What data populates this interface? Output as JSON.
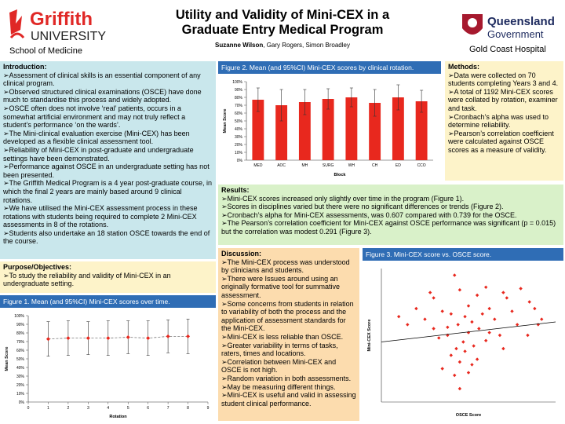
{
  "header": {
    "title_line1": "Utility and Validity of Mini-CEX in a",
    "title_line2": "Graduate Entry Medical Program",
    "author_lead": "Suzanne Wilson",
    "authors_rest": ", Gary Rogers, Simon Broadley",
    "left_logo_1": "Griffith",
    "left_logo_2": "UNIVERSITY",
    "right_logo_1": "Queensland",
    "right_logo_2": "Government",
    "school": "School of Medicine",
    "hospital": "Gold Coast Hospital"
  },
  "introduction": {
    "heading": "Introduction:",
    "items": [
      "➢Assessment of clinical skills is an essential component of any clinical program.",
      "➢Observed structured clinical examinations (OSCE) have done much to standardise this process and widely adopted.",
      "➢OSCE often does not involve ‘real’ patients, occurs in a somewhat artificial environment and may not truly reflect a student’s performance ‘on the wards’.",
      "➢The Mini-clinical evaluation exercise (Mini-CEX) has been developed as a flexible clinical assessment tool.",
      "➢Reliability of Mini-CEX in post-graduate and undergraduate settings have been demonstrated.",
      "➢Performance against OSCE in an undergraduate setting has not been presented.",
      "➢The Griffith Medical Program is a 4 year post-graduate course, in which the final 2 years are mainly based around 9 clinical rotations.",
      "➢We have utilised the Mini-CEX assessment process in these rotations with students being required to complete 2 Mini-CEX assessments in 8 of the rotations.",
      "➢Students also undertake an 18 station OSCE towards the end of the course."
    ]
  },
  "purpose": {
    "heading": "Purpose/Objectives:",
    "items": [
      "➢To study the reliability and validity of Mini-CEX in an undergraduate setting."
    ]
  },
  "methods": {
    "heading": "Methods:",
    "items": [
      "➢Data were collected on 70 students completing Years 3 and 4.",
      "➢A total of 1192 Mini-CEX scores were collated by rotation, examiner and task.",
      "➢Cronbach’s alpha was used to determine reliability.",
      "➢Pearson’s correlation coefficient were calculated against OSCE scores as a measure of validity."
    ]
  },
  "results": {
    "heading": "Results:",
    "items": [
      "➢Mini-CEX scores increased only slightly over time in the program (Figure 1).",
      "➢Scores in disciplines varied but there were no significant differences or trends (Figure 2).",
      "➢Cronbach’s alpha for Mini-CEX assessments, was 0.607 compared with 0.739 for the OSCE.",
      "➢The Pearson’s correlation coefficient for Mini-CEX against OSCE performance was significant (p = 0.015) but the correlation was modest 0.291 (Figure 3)."
    ]
  },
  "discussion": {
    "heading": "Discussion:",
    "items": [
      "➢The Mini-CEX process was understood by clinicians and students.",
      "➢There were Issues around using an originally formative tool for summative assessment.",
      "➢Some concerns from students in relation to variability of both the process and the application of assessment standards for the Mini-CEX.",
      "➢Mini-CEX is less reliable than OSCE.",
      "➢Greater variability in terms of tasks, raters, times and locations.",
      "➢Correlation between Mini-CEX and OSCE is not high.",
      "➢Random variation in both assessments.",
      "➢May be measuring different things.",
      "➢Mini-CEX is useful and valid in assessing student clinical performance."
    ]
  },
  "chart_data": [
    {
      "type": "line",
      "title": "Figure 1. Mean (and 95%CI) Mini-CEX scores over time.",
      "x_label": "Rotation",
      "y_label": "Mean Score",
      "x": [
        1,
        2,
        3,
        4,
        5,
        6,
        7,
        8
      ],
      "values": [
        73,
        74,
        74,
        74,
        75,
        74,
        76,
        76
      ],
      "errors": [
        20,
        20,
        19,
        20,
        19,
        20,
        19,
        20
      ],
      "color": "#e8281e",
      "xlim": [
        0,
        9
      ],
      "xticks": [
        0,
        1,
        2,
        3,
        4,
        5,
        6,
        7,
        8,
        9
      ],
      "ylim": [
        0,
        100
      ],
      "yticks": [
        {
          "value": 0,
          "label": "0%"
        },
        {
          "value": 10,
          "label": "10%"
        },
        {
          "value": 20,
          "label": "20%"
        },
        {
          "value": 30,
          "label": "30%"
        },
        {
          "value": 40,
          "label": "40%"
        },
        {
          "value": 50,
          "label": "50%"
        },
        {
          "value": 60,
          "label": "60%"
        },
        {
          "value": 70,
          "label": "70%"
        },
        {
          "value": 80,
          "label": "80%"
        },
        {
          "value": 90,
          "label": "90%"
        },
        {
          "value": 100,
          "label": "100%"
        }
      ]
    },
    {
      "type": "bar",
      "title": "Figure 2. Mean (and 95%CI) Mini-CEX scores by clinical rotation.",
      "x_label": "Block",
      "y_label": "Mean Score",
      "categories": [
        "MED",
        "AOC",
        "MH",
        "SURG",
        "WH",
        "CH",
        "ED",
        "CCO"
      ],
      "values": [
        77,
        70,
        74,
        78,
        80,
        73,
        80,
        75
      ],
      "errors": [
        15,
        20,
        16,
        13,
        12,
        17,
        16,
        14
      ],
      "color": "#e8281e",
      "ylim": [
        0,
        100
      ],
      "yticks": [
        {
          "value": 0,
          "label": "0%"
        },
        {
          "value": 10,
          "label": "10%"
        },
        {
          "value": 20,
          "label": "20%"
        },
        {
          "value": 30,
          "label": "30%"
        },
        {
          "value": 40,
          "label": "40%"
        },
        {
          "value": 50,
          "label": "50%"
        },
        {
          "value": 60,
          "label": "60%"
        },
        {
          "value": 70,
          "label": "70%"
        },
        {
          "value": 80,
          "label": "80%"
        },
        {
          "value": 90,
          "label": "90%"
        },
        {
          "value": 100,
          "label": "100%"
        }
      ]
    },
    {
      "type": "scatter",
      "title": "Figure 3. Mini-CEX score vs. OSCE score.",
      "x_label": "OSCE Score",
      "y_label": "Mini-CEX Score",
      "color": "#e8281e",
      "xlim": [
        0,
        100
      ],
      "ylim": [
        0,
        100
      ],
      "x": [
        42,
        28,
        30,
        45,
        55,
        60,
        70,
        72,
        80,
        85,
        62,
        50,
        35,
        20,
        25,
        40,
        48,
        52,
        58,
        65,
        75,
        88,
        90,
        10,
        15,
        30,
        38,
        44,
        50,
        56,
        62,
        68,
        78,
        84,
        92,
        33,
        47,
        53,
        60,
        70,
        40,
        45,
        48,
        55,
        35,
        42,
        52,
        38,
        43,
        45,
        50
      ],
      "values": [
        95,
        82,
        78,
        84,
        80,
        86,
        82,
        78,
        85,
        75,
        70,
        72,
        68,
        70,
        62,
        66,
        64,
        60,
        66,
        62,
        68,
        70,
        58,
        64,
        58,
        55,
        56,
        58,
        52,
        55,
        52,
        50,
        58,
        50,
        62,
        48,
        45,
        42,
        46,
        40,
        35,
        30,
        38,
        32,
        25,
        20,
        28,
        50,
        40,
        10,
        22
      ],
      "trendline": {
        "x": [
          0,
          100
        ],
        "values": [
          45,
          60
        ]
      }
    }
  ]
}
